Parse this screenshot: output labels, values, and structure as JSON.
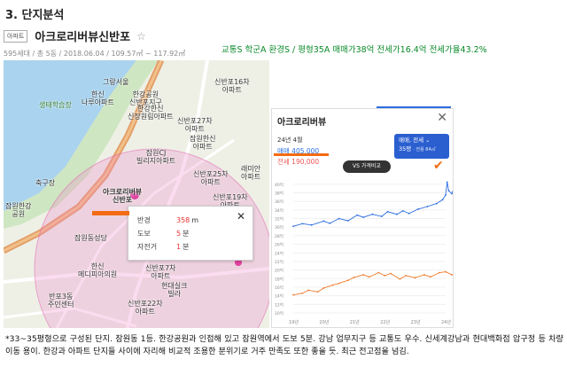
{
  "section": {
    "title": "3. 단지분석"
  },
  "apartment": {
    "tag": "아파트",
    "name": "아크로리버뷰신반포",
    "star": "☆",
    "meta": "595세대 / 총 5동 / 2018.06.04 / 109.57㎡ ~ 117.92㎡"
  },
  "score_line": "교통S  학군A  환경S  /  평형35A  매매가38억  전세가16.4억  전세가율43.2%",
  "map": {
    "labels": {
      "granseo": "그랑서울",
      "hanshin_ng": "한신\n나루아파트",
      "life_ecology": "생태학습장",
      "hangang_park": "한강공원\n신반포지구",
      "hangang_shinsegae": "한강한신\n신장원림아파트",
      "shinbanpo16": "신반포16차\n아파트",
      "shinbanpo27": "신반포27차\n아파트",
      "jamwon_hanshin": "잠원한신\n아파트",
      "jamwon_cj": "잠원CJ\n빌리지아파트",
      "shinbanpo25": "신반포25차\n아파트",
      "raemian": "래미안\n아파트",
      "shinbanpo19": "신반포19차\n아파트",
      "sports": "축구장",
      "jamwon_hangang": "잠원한강\n공원",
      "acro": "아크로리버뷰\n신반포",
      "jamwon_dong": "잠원동성당",
      "hanshin_medi": "한신\n메디피아의원",
      "shinbanpo7": "신반포7차\n아파트",
      "hyundai_silk": "현대실크\n빌라",
      "banpo3": "반포3동\n주민센터",
      "shinbanpo22": "신반포22차\n아파트",
      "youth": "청소년수련관"
    },
    "popup": {
      "radius_label": "반경",
      "radius_value": "358",
      "radius_unit": "m",
      "walk_label": "도보",
      "walk_value": "5",
      "walk_unit": "분",
      "bike_label": "자전거",
      "bike_value": "1",
      "bike_unit": "분",
      "close": "✕"
    }
  },
  "panel": {
    "title": "아크로리버뷰",
    "close": "✕",
    "month": "24년 4월",
    "trade": "매매 405,000",
    "rent": "전세 190,000",
    "badge_line1": "매매, 전세 ⌄",
    "badge_line2": "35평",
    "badge_line2_small": "· 전용 84㎡",
    "compare_button": "VS 가격비교",
    "check_mark": "✔"
  },
  "chart_data": {
    "type": "line",
    "x": [
      "19년",
      "20년",
      "21년",
      "22년",
      "23년",
      "24년"
    ],
    "y_ticks": [
      "40억",
      "38억",
      "36억",
      "34억",
      "32억",
      "30억",
      "28억",
      "26억",
      "24억",
      "22억",
      "20억",
      "18억",
      "16억",
      "14억",
      "12억",
      "10억"
    ],
    "ylim": [
      10,
      41
    ],
    "series": [
      {
        "color": "#2b6de0",
        "values": [
          [
            0.0,
            30.2
          ],
          [
            0.3,
            30.8
          ],
          [
            0.6,
            30.5
          ],
          [
            1.0,
            31.4
          ],
          [
            1.2,
            30.9
          ],
          [
            1.5,
            32.0
          ],
          [
            1.8,
            31.5
          ],
          [
            2.1,
            32.8
          ],
          [
            2.3,
            32.3
          ],
          [
            2.6,
            33.0
          ],
          [
            2.9,
            32.5
          ],
          [
            3.1,
            33.6
          ],
          [
            3.4,
            33.0
          ],
          [
            3.6,
            33.8
          ],
          [
            3.8,
            33.2
          ],
          [
            4.1,
            34.2
          ],
          [
            4.4,
            34.8
          ],
          [
            4.7,
            35.5
          ],
          [
            4.9,
            36.4
          ],
          [
            5.0,
            37.5
          ],
          [
            5.05,
            40.5
          ],
          [
            5.1,
            38.5
          ],
          [
            5.2,
            37.8
          ],
          [
            5.3,
            39.5
          ],
          [
            5.4,
            38.8
          ]
        ]
      },
      {
        "color": "#f07a2a",
        "values": [
          [
            0.0,
            14.2
          ],
          [
            0.3,
            14.6
          ],
          [
            0.5,
            15.3
          ],
          [
            0.8,
            14.9
          ],
          [
            1.0,
            15.8
          ],
          [
            1.3,
            16.5
          ],
          [
            1.5,
            16.9
          ],
          [
            1.8,
            17.6
          ],
          [
            2.0,
            18.3
          ],
          [
            2.3,
            18.9
          ],
          [
            2.5,
            18.4
          ],
          [
            2.8,
            19.4
          ],
          [
            3.0,
            18.7
          ],
          [
            3.2,
            19.2
          ],
          [
            3.5,
            17.9
          ],
          [
            3.7,
            18.7
          ],
          [
            4.0,
            18.2
          ],
          [
            4.3,
            18.9
          ],
          [
            4.5,
            18.4
          ],
          [
            4.8,
            19.4
          ],
          [
            5.0,
            19.6
          ],
          [
            5.2,
            18.9
          ],
          [
            5.4,
            19.1
          ]
        ]
      }
    ]
  },
  "description": "*33~35평형으로 구성된 단지. 잠원동 1등. 한강공원과 인접해 있고 잠원역에서 도보 5분. 강남 업무지구 등 교통도 우수. 신세계강남과 현대백화점 압구정 등 차량 이동 용이. 한강과 아파트 단지들 사이에 자리해 비교적 조용한 분위기로 거주 만족도 또한 좋을 듯. 최근 전고점을 넘김."
}
